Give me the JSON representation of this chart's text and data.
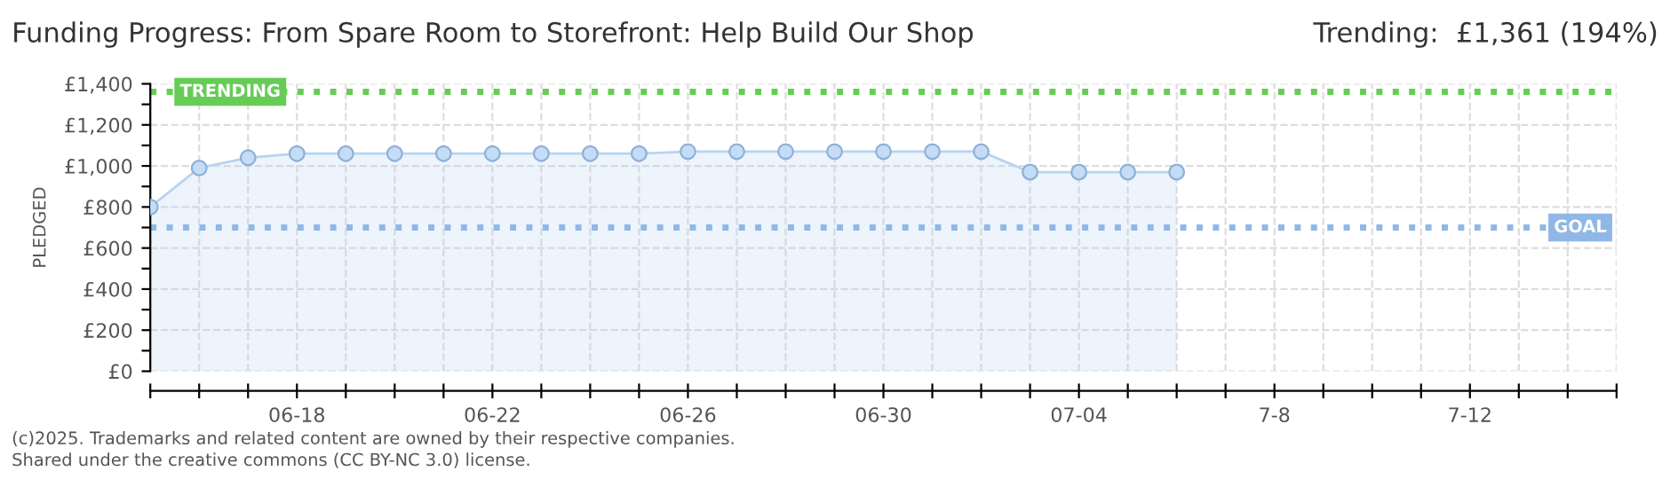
{
  "chart_data": {
    "type": "area",
    "title": "Funding Progress: From Spare Room to Storefront: Help Build Our Shop",
    "subtitle": "Trending:  £1,361 (194%)",
    "ylabel": "PLEDGED",
    "x": [
      "2025-06-15",
      "2025-06-16",
      "2025-06-17",
      "2025-06-18",
      "2025-06-19",
      "2025-06-20",
      "2025-06-21",
      "2025-06-22",
      "2025-06-23",
      "2025-06-24",
      "2025-06-25",
      "2025-06-26",
      "2025-06-27",
      "2025-06-28",
      "2025-06-29",
      "2025-06-30",
      "2025-07-01",
      "2025-07-02",
      "2025-07-03",
      "2025-07-04",
      "2025-07-05",
      "2025-07-06"
    ],
    "series": [
      {
        "color": "#b8d4f0",
        "values": [
          800,
          990,
          1040,
          1060,
          1060,
          1060,
          1060,
          1060,
          1060,
          1060,
          1060,
          1070,
          1070,
          1070,
          1070,
          1070,
          1070,
          1070,
          970,
          970,
          970,
          970
        ]
      }
    ],
    "marker": "circle",
    "grid": true,
    "ylim": [
      0,
      1400
    ],
    "yticks": [
      {
        "value": 0,
        "label": "£0"
      },
      {
        "value": 100,
        "label": null
      },
      {
        "value": 200,
        "label": "£200"
      },
      {
        "value": 300,
        "label": null
      },
      {
        "value": 400,
        "label": "£400"
      },
      {
        "value": 500,
        "label": null
      },
      {
        "value": 600,
        "label": "£600"
      },
      {
        "value": 700,
        "label": null
      },
      {
        "value": 800,
        "label": "£800"
      },
      {
        "value": 900,
        "label": null
      },
      {
        "value": 1000,
        "label": "£1,000"
      },
      {
        "value": 1100,
        "label": null
      },
      {
        "value": 1200,
        "label": "£1,200"
      },
      {
        "value": 1300,
        "label": null
      },
      {
        "value": 1400,
        "label": "£1,400"
      }
    ],
    "xlim": [
      "2025-06-15",
      "2025-07-15"
    ],
    "xticks": [
      {
        "value": "2025-06-15",
        "label": null
      },
      {
        "value": "2025-06-16",
        "label": null
      },
      {
        "value": "2025-06-17",
        "label": null
      },
      {
        "value": "2025-06-18",
        "label": "06-18"
      },
      {
        "value": "2025-06-19",
        "label": null
      },
      {
        "value": "2025-06-20",
        "label": null
      },
      {
        "value": "2025-06-21",
        "label": null
      },
      {
        "value": "2025-06-22",
        "label": "06-22"
      },
      {
        "value": "2025-06-23",
        "label": null
      },
      {
        "value": "2025-06-24",
        "label": null
      },
      {
        "value": "2025-06-25",
        "label": null
      },
      {
        "value": "2025-06-26",
        "label": "06-26"
      },
      {
        "value": "2025-06-27",
        "label": null
      },
      {
        "value": "2025-06-28",
        "label": null
      },
      {
        "value": "2025-06-29",
        "label": null
      },
      {
        "value": "2025-06-30",
        "label": "06-30"
      },
      {
        "value": "2025-07-01",
        "label": null
      },
      {
        "value": "2025-07-02",
        "label": null
      },
      {
        "value": "2025-07-03",
        "label": null
      },
      {
        "value": "2025-07-04",
        "label": "07-04"
      },
      {
        "value": "2025-07-05",
        "label": null
      },
      {
        "value": "2025-07-06",
        "label": null
      },
      {
        "value": "2025-07-07",
        "label": null
      },
      {
        "value": "2025-07-08",
        "label": "7-8"
      },
      {
        "value": "2025-07-09",
        "label": null
      },
      {
        "value": "2025-07-10",
        "label": null
      },
      {
        "value": "2025-07-11",
        "label": null
      },
      {
        "value": "2025-07-12",
        "label": "7-12"
      },
      {
        "value": "2025-07-13",
        "label": null
      },
      {
        "value": "2025-07-14",
        "label": null
      },
      {
        "value": "2025-07-15",
        "label": null
      }
    ],
    "ref_lines": [
      {
        "axis": "y",
        "value": 1361,
        "label": "TRENDING",
        "color": "#66cc55",
        "line_style": "dotted"
      },
      {
        "axis": "y",
        "value": 700,
        "label": "GOAL",
        "color": "#8fb8e6",
        "line_style": "dotted"
      }
    ],
    "annotations": [
      "(c)2025. Trademarks and related content are owned by their respective companies.",
      "Shared under the creative commons (CC BY-NC 3.0) license."
    ]
  }
}
